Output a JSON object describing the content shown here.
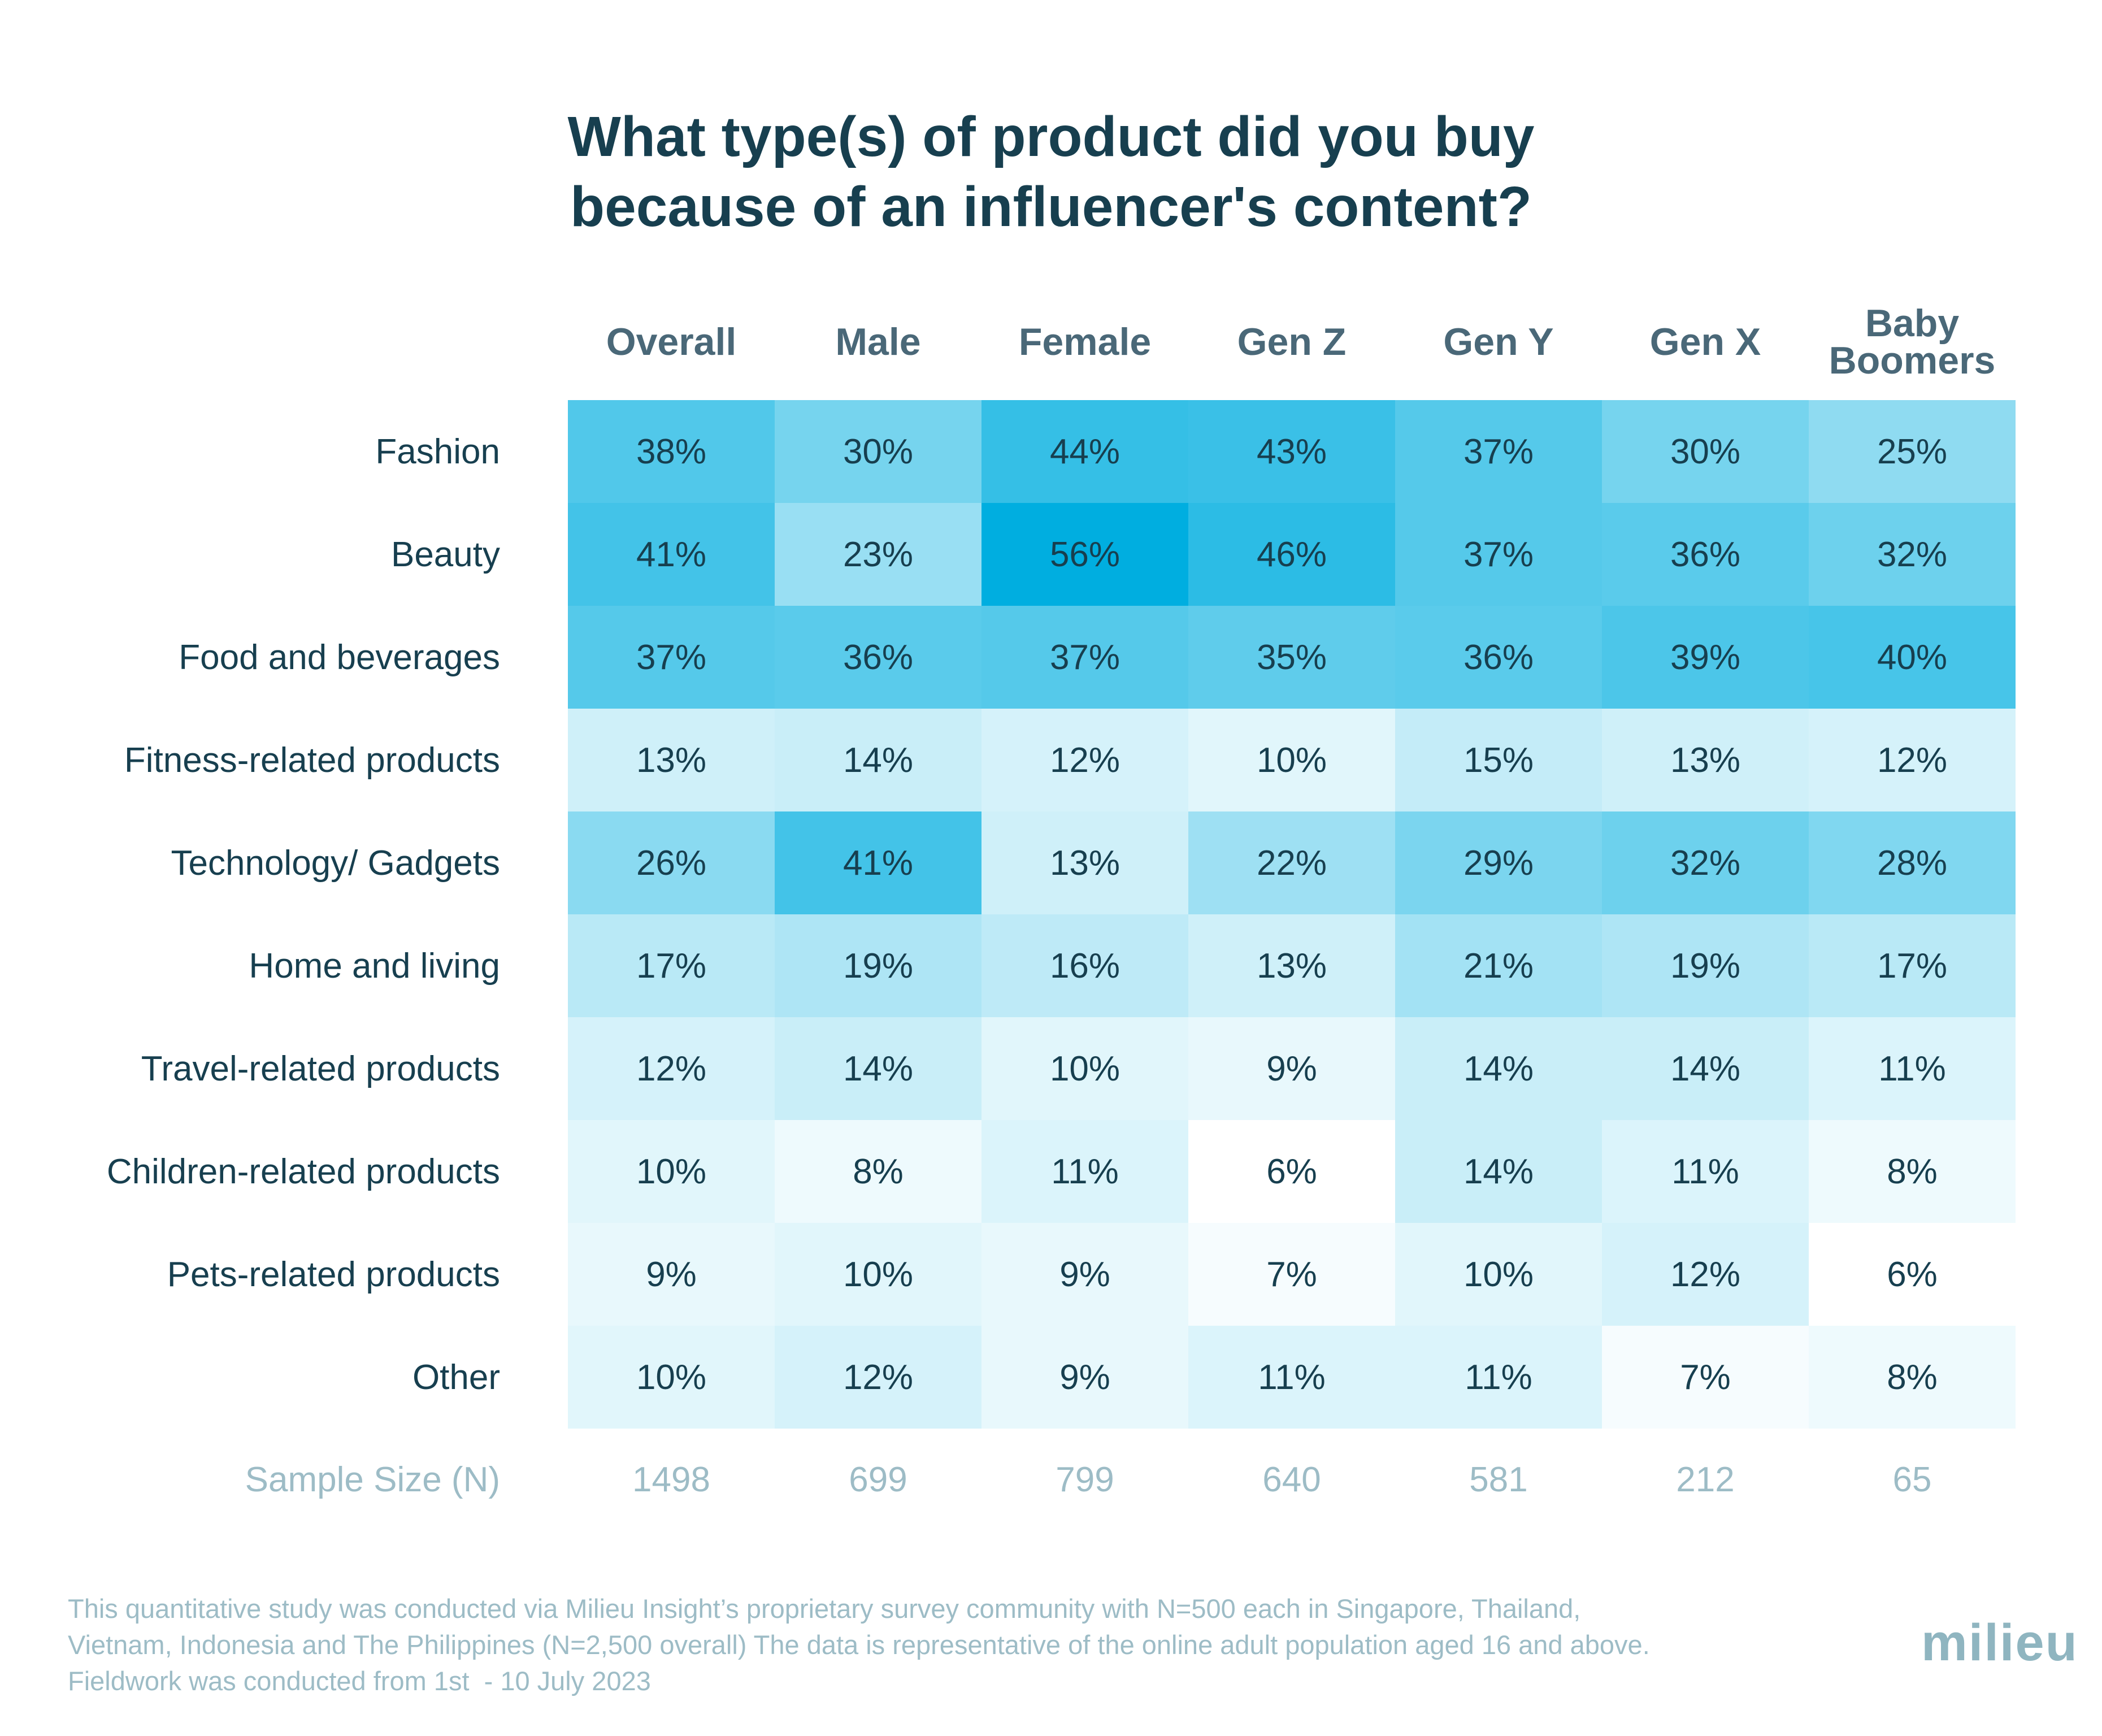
{
  "title": {
    "line1": "What type(s) of product did you buy",
    "line2": "because of an influencer's content?"
  },
  "chart_data": {
    "type": "heatmap",
    "title": "What type(s) of product did you buy because of an influencer's content?",
    "columns": [
      "Overall",
      "Male",
      "Female",
      "Gen Z",
      "Gen Y",
      "Gen X",
      "Baby Boomers"
    ],
    "rows": [
      "Fashion",
      "Beauty",
      "Food and beverages",
      "Fitness-related products",
      "Technology/ Gadgets",
      "Home and living",
      "Travel-related products",
      "Children-related products",
      "Pets-related products",
      "Other"
    ],
    "values": [
      [
        38,
        30,
        44,
        43,
        37,
        30,
        25
      ],
      [
        41,
        23,
        56,
        46,
        37,
        36,
        32
      ],
      [
        37,
        36,
        37,
        35,
        36,
        39,
        40
      ],
      [
        13,
        14,
        12,
        10,
        15,
        13,
        12
      ],
      [
        26,
        41,
        13,
        22,
        29,
        32,
        28
      ],
      [
        17,
        19,
        16,
        13,
        21,
        19,
        17
      ],
      [
        12,
        14,
        10,
        9,
        14,
        14,
        11
      ],
      [
        10,
        8,
        11,
        6,
        14,
        11,
        8
      ],
      [
        9,
        10,
        9,
        7,
        10,
        12,
        6
      ],
      [
        10,
        12,
        9,
        11,
        11,
        7,
        8
      ]
    ],
    "unit": "%",
    "sample_size_label": "Sample Size (N)",
    "sample_sizes": [
      1498,
      699,
      799,
      640,
      581,
      212,
      65
    ],
    "color_scale": {
      "low": "#ffffff",
      "high": "#00aee0",
      "min": 6,
      "max": 56
    }
  },
  "footer": {
    "line1": "This quantitative study was conducted via Milieu Insight’s proprietary survey community with N=500 each in Singapore, Thailand,",
    "line2": "Vietnam, Indonesia and The Philippines (N=2,500 overall) The data is representative of the online adult population aged 16 and above.",
    "line3": "Fieldwork was conducted from 1st  - 10 July 2023"
  },
  "logo": {
    "text": "milieu"
  }
}
